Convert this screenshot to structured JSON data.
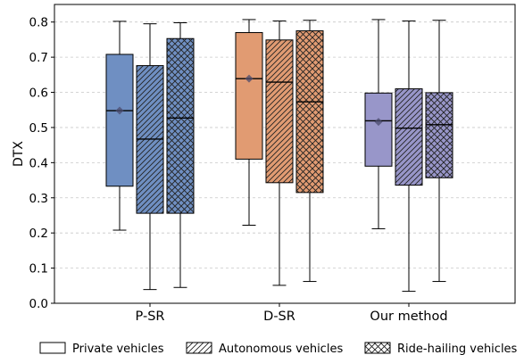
{
  "chart_data": {
    "type": "box",
    "title": "",
    "xlabel": "",
    "ylabel": "DTX",
    "ylim": [
      0.0,
      0.85
    ],
    "yticks": [
      "0.0",
      "0.1",
      "0.2",
      "0.3",
      "0.4",
      "0.5",
      "0.6",
      "0.7",
      "0.8"
    ],
    "grid": "horizontal-dashed",
    "legend_position": "bottom",
    "categories": [
      "P-SR",
      "D-SR",
      "Our method"
    ],
    "category_colors": [
      "#6f8fc2",
      "#e19b72",
      "#9896c9"
    ],
    "series": [
      {
        "name": "Private vehicles",
        "hatch": "none",
        "boxes": [
          {
            "whisker_low": 0.208,
            "q1": 0.333,
            "median": 0.548,
            "q3": 0.708,
            "whisker_high": 0.802,
            "mean": 0.548
          },
          {
            "whisker_low": 0.222,
            "q1": 0.41,
            "median": 0.639,
            "q3": 0.77,
            "whisker_high": 0.807,
            "mean": 0.639
          },
          {
            "whisker_low": 0.212,
            "q1": 0.39,
            "median": 0.519,
            "q3": 0.598,
            "whisker_high": 0.807,
            "mean": 0.516
          }
        ]
      },
      {
        "name": "Autonomous vehicles",
        "hatch": "diagonal",
        "boxes": [
          {
            "whisker_low": 0.039,
            "q1": 0.256,
            "median": 0.467,
            "q3": 0.676,
            "whisker_high": 0.795
          },
          {
            "whisker_low": 0.051,
            "q1": 0.343,
            "median": 0.629,
            "q3": 0.749,
            "whisker_high": 0.803
          },
          {
            "whisker_low": 0.034,
            "q1": 0.336,
            "median": 0.498,
            "q3": 0.61,
            "whisker_high": 0.803
          }
        ]
      },
      {
        "name": "Ride-hailing vehicles",
        "hatch": "crosshatch",
        "boxes": [
          {
            "whisker_low": 0.045,
            "q1": 0.256,
            "median": 0.527,
            "q3": 0.753,
            "whisker_high": 0.798
          },
          {
            "whisker_low": 0.062,
            "q1": 0.315,
            "median": 0.573,
            "q3": 0.775,
            "whisker_high": 0.805
          },
          {
            "whisker_low": 0.062,
            "q1": 0.357,
            "median": 0.508,
            "q3": 0.599,
            "whisker_high": 0.805
          }
        ]
      }
    ]
  }
}
